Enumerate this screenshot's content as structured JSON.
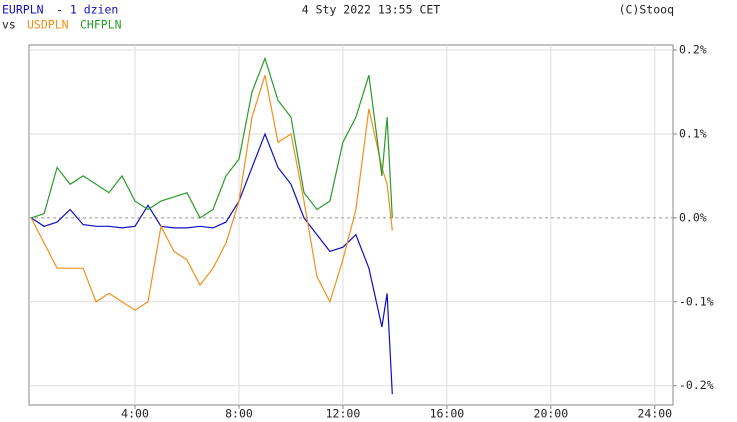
{
  "chart_data": {
    "type": "line",
    "title": "- 1 dzien",
    "subtitle": "4 Sty 2022 13:55 CET",
    "source": "(C)Stooq",
    "compare_label": "vs",
    "x": [
      0,
      0.5,
      1,
      1.5,
      2,
      2.5,
      3,
      3.5,
      4,
      4.5,
      5,
      5.5,
      6,
      6.5,
      7,
      7.5,
      8,
      8.5,
      9,
      9.5,
      10,
      10.5,
      11,
      11.5,
      12,
      12.5,
      13,
      13.5,
      13.7,
      13.9
    ],
    "series": [
      {
        "name": "EURPLN",
        "color": "#1010c0",
        "values": [
          0,
          -0.01,
          -0.005,
          0.01,
          -0.008,
          -0.01,
          -0.01,
          -0.012,
          -0.01,
          0.015,
          -0.01,
          -0.012,
          -0.012,
          -0.01,
          -0.012,
          -0.005,
          0.02,
          0.06,
          0.1,
          0.06,
          0.04,
          0.0,
          -0.02,
          -0.04,
          -0.035,
          -0.02,
          -0.06,
          -0.13,
          -0.09,
          -0.21
        ]
      },
      {
        "name": "USDPLN",
        "color": "#f0901c",
        "values": [
          0,
          -0.03,
          -0.06,
          -0.06,
          -0.06,
          -0.1,
          -0.09,
          -0.1,
          -0.11,
          -0.1,
          -0.01,
          -0.04,
          -0.05,
          -0.08,
          -0.06,
          -0.03,
          0.02,
          0.12,
          0.17,
          0.09,
          0.1,
          0.02,
          -0.07,
          -0.1,
          -0.05,
          0.01,
          0.13,
          0.06,
          0.04,
          -0.015
        ]
      },
      {
        "name": "CHFPLN",
        "color": "#2a9a2a",
        "values": [
          0,
          0.005,
          0.06,
          0.04,
          0.05,
          0.04,
          0.03,
          0.05,
          0.02,
          0.01,
          0.02,
          0.025,
          0.03,
          0.0,
          0.01,
          0.05,
          0.07,
          0.15,
          0.19,
          0.14,
          0.12,
          0.03,
          0.01,
          0.02,
          0.09,
          0.12,
          0.17,
          0.05,
          0.12,
          0.0
        ]
      }
    ],
    "xlim": [
      -0.08,
      24.7
    ],
    "xticks": [
      {
        "value": 4,
        "label": "4:00"
      },
      {
        "value": 8,
        "label": "8:00"
      },
      {
        "value": 12,
        "label": "12:00"
      },
      {
        "value": 16,
        "label": "16:00"
      },
      {
        "value": 20,
        "label": "20:00"
      },
      {
        "value": 24,
        "label": "24:00"
      }
    ],
    "ylim": [
      -0.223,
      0.206
    ],
    "yticks": [
      {
        "value": 0.2,
        "label": "0.2%"
      },
      {
        "value": 0.1,
        "label": "0.1%"
      },
      {
        "value": 0.0,
        "label": "0.0%"
      },
      {
        "value": -0.1,
        "label": "-0.1%"
      },
      {
        "value": -0.2,
        "label": "-0.2%"
      }
    ],
    "grid": true
  }
}
